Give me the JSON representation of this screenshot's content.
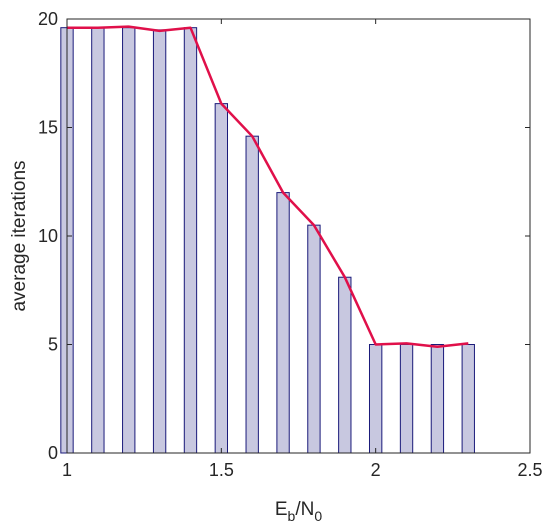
{
  "chart_data": {
    "type": "bar",
    "x": [
      1.0,
      1.1,
      1.2,
      1.3,
      1.4,
      1.5,
      1.6,
      1.7,
      1.8,
      1.9,
      2.0,
      2.1,
      2.2,
      2.3
    ],
    "series": [
      {
        "kind": "bar",
        "values": [
          19.6,
          19.6,
          19.6,
          19.5,
          19.6,
          16.1,
          14.6,
          12.0,
          10.5,
          8.1,
          5.0,
          5.0,
          5.0,
          5.0
        ]
      },
      {
        "kind": "line",
        "values": [
          19.6,
          19.6,
          19.65,
          19.45,
          19.6,
          16.1,
          14.6,
          12.0,
          10.5,
          8.1,
          5.0,
          5.05,
          4.9,
          5.05
        ]
      }
    ],
    "xlabel": {
      "main": "E",
      "sub1": "b",
      "sep": "/N",
      "sub2": "0"
    },
    "ylabel": "average iterations",
    "xlim": [
      1,
      2.5
    ],
    "ylim": [
      0,
      20
    ],
    "xticks": [
      "1",
      "1.5",
      "2",
      "2.5"
    ],
    "yticks": [
      "0",
      "5",
      "10",
      "15",
      "20"
    ],
    "grid": false,
    "colors": {
      "bar_fill": "#c8c8e0",
      "bar_edge": "#1a1a7a",
      "line": "#e0104a",
      "axis": "#262626"
    }
  }
}
